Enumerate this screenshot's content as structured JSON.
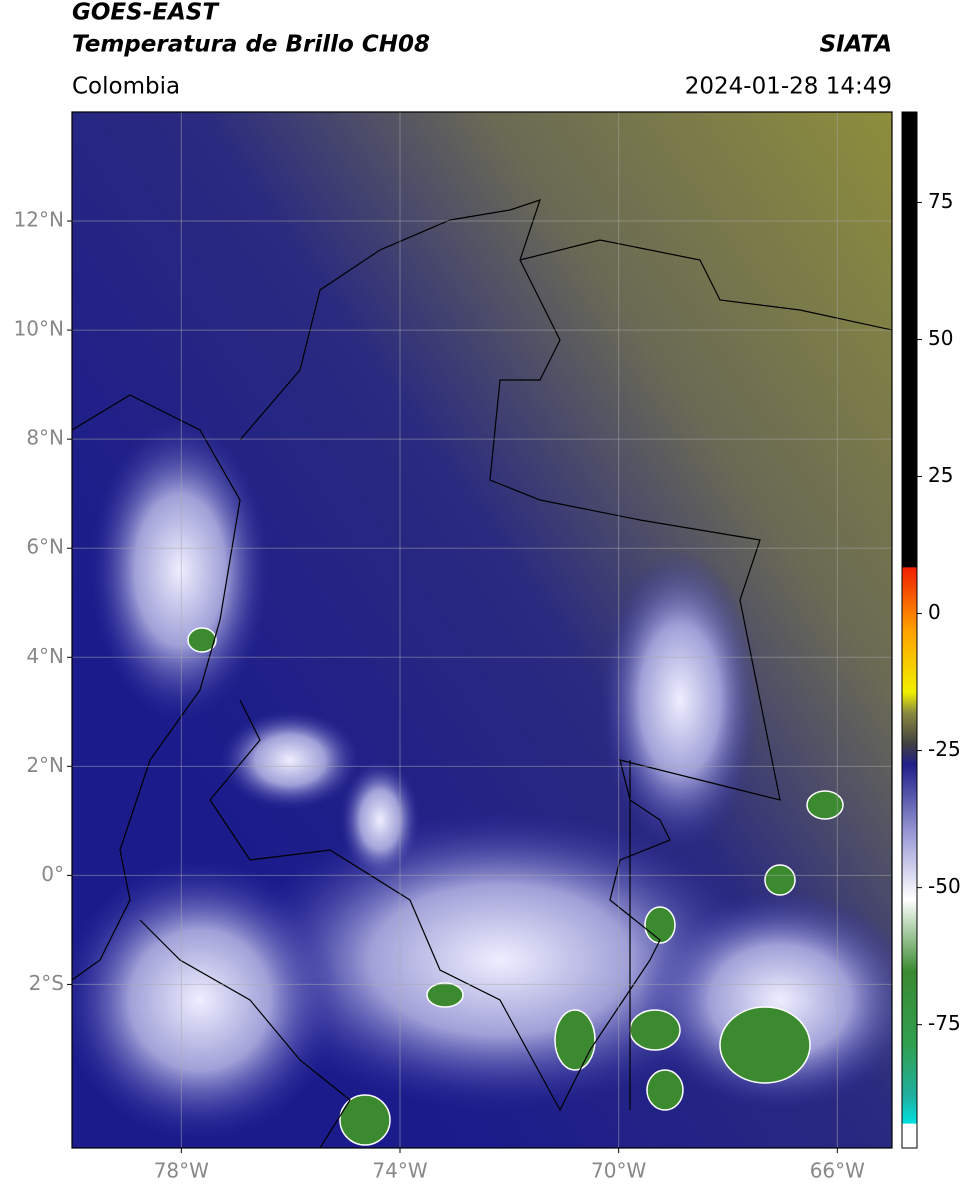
{
  "header": {
    "satellite": "GOES-EAST",
    "product": "Temperatura de Brillo CH08",
    "region": "Colombia",
    "source": "SIATA",
    "datetime": "2024-01-28 14:49"
  },
  "map": {
    "lon_range": [
      -80,
      -65
    ],
    "lat_range": [
      -5,
      14
    ],
    "grid": true,
    "lat_ticks": [
      {
        "value": 12,
        "label": "12°N"
      },
      {
        "value": 10,
        "label": "10°N"
      },
      {
        "value": 8,
        "label": "8°N"
      },
      {
        "value": 6,
        "label": "6°N"
      },
      {
        "value": 4,
        "label": "4°N"
      },
      {
        "value": 2,
        "label": "2°N"
      },
      {
        "value": 0,
        "label": "0°"
      },
      {
        "value": -2,
        "label": "2°S"
      }
    ],
    "lon_ticks": [
      {
        "value": -78,
        "label": "78°W"
      },
      {
        "value": -74,
        "label": "74°W"
      },
      {
        "value": -70,
        "label": "70°W"
      },
      {
        "value": -66,
        "label": "66°W"
      }
    ]
  },
  "colorbar": {
    "range": [
      -97.5,
      91.5
    ],
    "ticks": [
      75,
      50,
      25,
      0,
      -25,
      -50,
      -75
    ]
  }
}
